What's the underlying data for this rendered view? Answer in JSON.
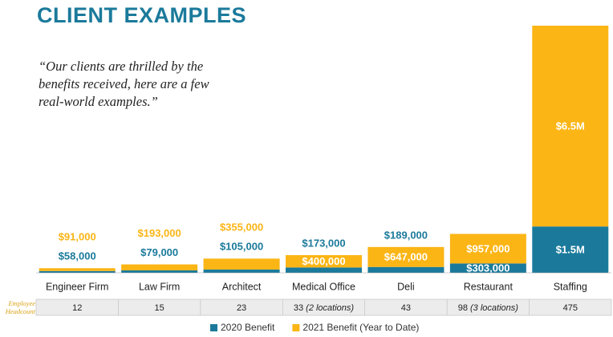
{
  "chart_data": {
    "type": "stacked-bar",
    "title": "CLIENT EXAMPLES",
    "quote": "“Our clients are thrilled by the benefits received, here are a few real-world examples.”",
    "categories": [
      "Engineer Firm",
      "Law Firm",
      "Architect",
      "Medical Office",
      "Deli",
      "Restaurant",
      "Staffing"
    ],
    "series": [
      {
        "name": "2020 Benefit",
        "color": "#1b7a9b",
        "values": [
          58000,
          79000,
          105000,
          173000,
          189000,
          303000,
          1500000
        ],
        "value_labels": [
          "$58,000",
          "$79,000",
          "$105,000",
          "$173,000",
          "$189,000",
          "$303,000",
          "$1.5M"
        ]
      },
      {
        "name": "2021 Benefit (Year to Date)",
        "color": "#fbb515",
        "values": [
          91000,
          193000,
          355000,
          400000,
          647000,
          957000,
          6500000
        ],
        "value_labels": [
          "$91,000",
          "$193,000",
          "$355,000",
          "$400,000",
          "$647,000",
          "$957,000",
          "$6.5M"
        ]
      }
    ],
    "headcount": {
      "label": "Employee Headcount",
      "values": [
        12,
        15,
        23,
        33,
        43,
        98,
        475
      ],
      "notes": [
        null,
        null,
        null,
        "(2 locations)",
        null,
        "(3 locations)",
        null
      ]
    }
  }
}
